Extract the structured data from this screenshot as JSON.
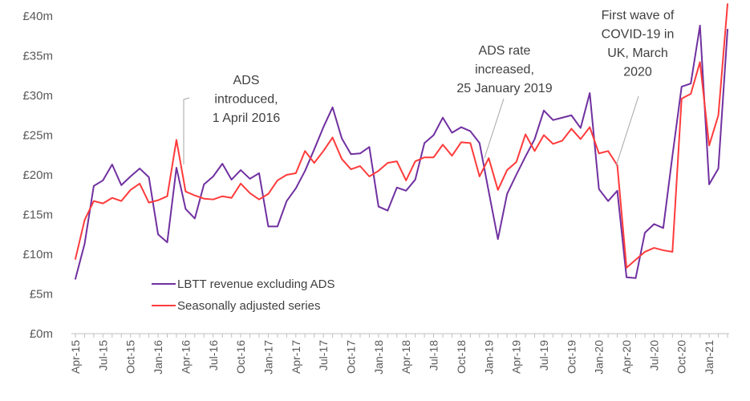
{
  "chart_data": {
    "type": "line",
    "x": [
      "Apr-15",
      "May-15",
      "Jun-15",
      "Jul-15",
      "Aug-15",
      "Sep-15",
      "Oct-15",
      "Nov-15",
      "Dec-15",
      "Jan-16",
      "Feb-16",
      "Mar-16",
      "Apr-16",
      "May-16",
      "Jun-16",
      "Jul-16",
      "Aug-16",
      "Sep-16",
      "Oct-16",
      "Nov-16",
      "Dec-16",
      "Jan-17",
      "Feb-17",
      "Mar-17",
      "Apr-17",
      "May-17",
      "Jun-17",
      "Jul-17",
      "Aug-17",
      "Sep-17",
      "Oct-17",
      "Nov-17",
      "Dec-17",
      "Jan-18",
      "Feb-18",
      "Mar-18",
      "Apr-18",
      "May-18",
      "Jun-18",
      "Jul-18",
      "Aug-18",
      "Sep-18",
      "Oct-18",
      "Nov-18",
      "Dec-18",
      "Jan-19",
      "Feb-19",
      "Mar-19",
      "Apr-19",
      "May-19",
      "Jun-19",
      "Jul-19",
      "Aug-19",
      "Sep-19",
      "Oct-19",
      "Nov-19",
      "Dec-19",
      "Jan-20",
      "Feb-20",
      "Mar-20",
      "Apr-20",
      "May-20",
      "Jun-20",
      "Jul-20",
      "Aug-20",
      "Sep-20",
      "Oct-20",
      "Nov-20",
      "Dec-20",
      "Jan-21",
      "Feb-21",
      "Mar-21"
    ],
    "x_tick_labels": [
      "Apr-15",
      "Jul-15",
      "Oct-15",
      "Jan-16",
      "Apr-16",
      "Jul-16",
      "Oct-16",
      "Jan-17",
      "Apr-17",
      "Jul-17",
      "Oct-17",
      "Jan-18",
      "Apr-18",
      "Jul-18",
      "Oct-18",
      "Jan-19",
      "Apr-19",
      "Jul-19",
      "Oct-19",
      "Jan-20",
      "Apr-20",
      "Jul-20",
      "Oct-20",
      "Jan-21"
    ],
    "y_tick_labels": [
      "£0m",
      "£5m",
      "£10m",
      "£15m",
      "£20m",
      "£25m",
      "£30m",
      "£35m",
      "£40m"
    ],
    "ylim": [
      0,
      40
    ],
    "y_unit": "£m",
    "grid": false,
    "legend_position": "lower-left",
    "series": [
      {
        "name": "LBTT revenue excluding ADS",
        "color": "#7030a0",
        "values": [
          6.9,
          11.3,
          18.6,
          19.3,
          21.3,
          18.7,
          19.8,
          20.8,
          19.7,
          12.5,
          11.5,
          20.9,
          15.7,
          14.5,
          18.8,
          19.8,
          21.4,
          19.4,
          20.6,
          19.5,
          20.2,
          13.5,
          13.5,
          16.7,
          18.3,
          20.5,
          23.2,
          26.0,
          28.5,
          24.6,
          22.6,
          22.7,
          23.5,
          16.0,
          15.5,
          18.4,
          18.0,
          19.4,
          24.0,
          25.0,
          27.2,
          25.3,
          26.0,
          25.5,
          24.0,
          17.9,
          11.9,
          17.6,
          20.0,
          22.3,
          24.5,
          28.1,
          26.9,
          27.2,
          27.5,
          25.9,
          30.3,
          18.2,
          16.7,
          18.0,
          7.1,
          7.0,
          12.7,
          13.8,
          13.3,
          22.4,
          31.1,
          31.5,
          38.8,
          18.8,
          20.8,
          38.3
        ]
      },
      {
        "name": "Seasonally adjusted series",
        "color": "#ff3b3b",
        "values": [
          9.4,
          14.3,
          16.7,
          16.4,
          17.1,
          16.7,
          18.1,
          18.9,
          16.5,
          16.8,
          17.3,
          24.4,
          17.9,
          17.4,
          17.0,
          16.9,
          17.3,
          17.1,
          18.9,
          17.7,
          16.9,
          17.6,
          19.3,
          20.0,
          20.2,
          23.0,
          21.5,
          23.0,
          24.7,
          22.0,
          20.7,
          21.1,
          19.8,
          20.5,
          21.5,
          21.7,
          19.3,
          21.7,
          22.2,
          22.2,
          23.8,
          22.4,
          24.1,
          24.0,
          19.8,
          22.1,
          18.1,
          20.6,
          21.6,
          25.1,
          23.0,
          25.0,
          23.9,
          24.3,
          25.8,
          24.5,
          26.0,
          22.7,
          23.0,
          21.2,
          8.3,
          9.3,
          10.3,
          10.8,
          10.5,
          10.3,
          29.6,
          30.2,
          34.2,
          23.7,
          27.5,
          41.5
        ]
      }
    ],
    "annotations": [
      {
        "lines": [
          "ADS",
          "introduced,",
          "1 April 2016"
        ],
        "points_to": "Apr-16"
      },
      {
        "lines": [
          "ADS rate",
          "increased,",
          "25 January 2019"
        ],
        "points_to": "Jan-19"
      },
      {
        "lines": [
          "First wave of",
          "COVID-19 in",
          "UK, March",
          "2020"
        ],
        "points_to": "Mar-20"
      }
    ]
  }
}
